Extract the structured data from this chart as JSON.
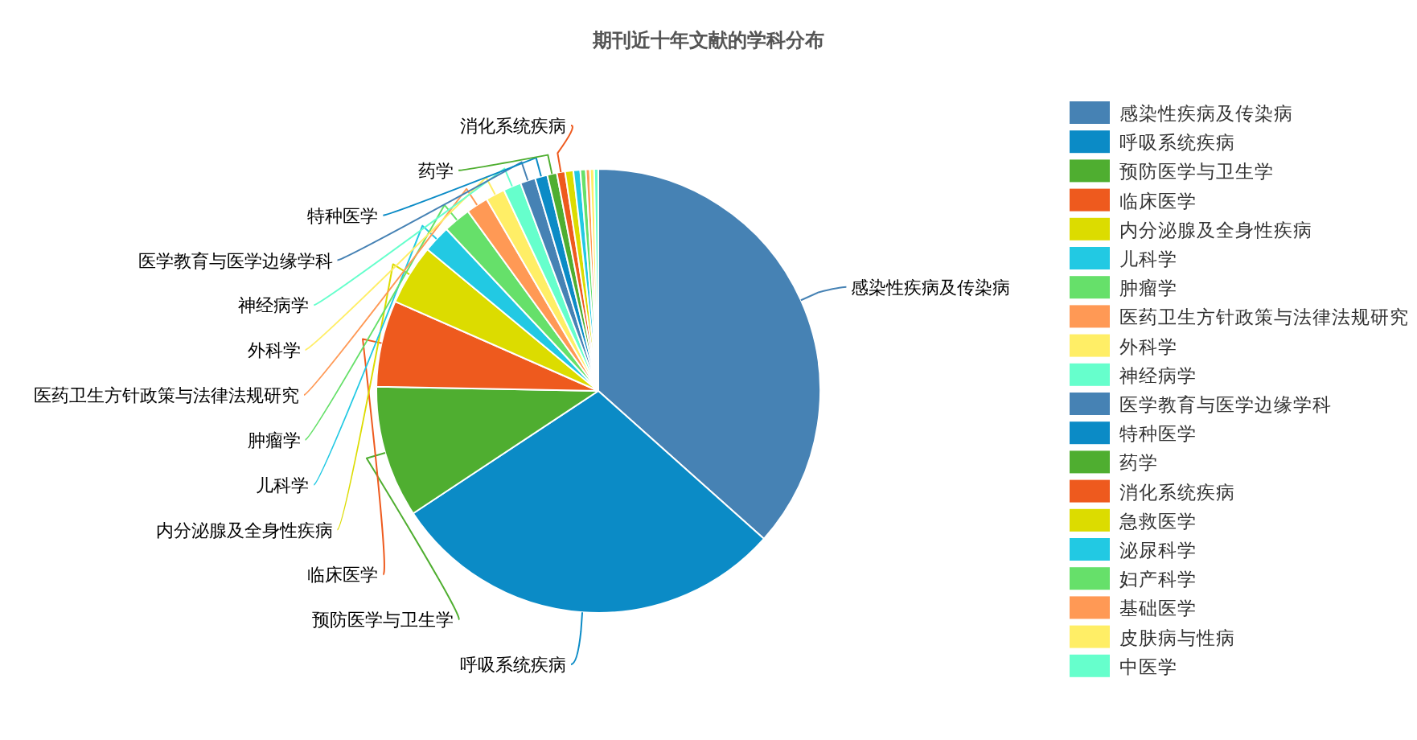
{
  "chart_data": {
    "type": "pie",
    "title": "期刊近十年文献的学科分布",
    "categories": [
      "感染性疾病及传染病",
      "呼吸系统疾病",
      "预防医学与卫生学",
      "临床医学",
      "内分泌腺及全身性疾病",
      "儿科学",
      "肿瘤学",
      "医药卫生方针政策与法律法规研究",
      "外科学",
      "神经病学",
      "医学教育与医学边缘学科",
      "特种医学",
      "药学",
      "消化系统疾病",
      "急救医学",
      "泌尿科学",
      "妇产科学",
      "基础医学",
      "皮肤病与性病",
      "中医学"
    ],
    "values": [
      36.6,
      29.1,
      9.6,
      6.3,
      4.4,
      2.0,
      2.0,
      1.6,
      1.4,
      1.3,
      1.1,
      0.9,
      0.7,
      0.6,
      0.6,
      0.5,
      0.4,
      0.3,
      0.3,
      0.3
    ],
    "colors": [
      "#4682b4",
      "#0b8bc6",
      "#4fae30",
      "#ee5a1e",
      "#dcdc00",
      "#22c9e3",
      "#66e06a",
      "#ff9955",
      "#ffee66",
      "#66ffcc",
      "#4682b4",
      "#0b8bc6",
      "#4fae30",
      "#ee5a1e",
      "#dcdc00",
      "#22c9e3",
      "#66e06a",
      "#ff9955",
      "#ffee66",
      "#66ffcc"
    ],
    "legend": "right"
  }
}
